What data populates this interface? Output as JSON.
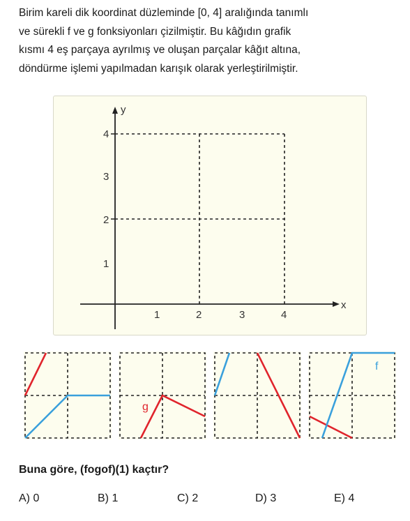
{
  "intro": {
    "lines": [
      "Birim kareli dik koordinat düzleminde [0, 4] aralığında tanımlı",
      "ve sürekli f ve g fonksiyonları çizilmiştir. Bu kâğıdın grafik",
      "kısmı 4 eş parçaya ayrılmış ve oluşan parçalar kâğıt altına,",
      "döndürme işlemi yapılmadan karışık olarak yerleştirilmiştir."
    ]
  },
  "graph": {
    "y_axis_label": "y",
    "x_axis_label": "x",
    "x_ticks": [
      "1",
      "2",
      "3",
      "4"
    ],
    "y_ticks": [
      "1",
      "2",
      "3",
      "4"
    ]
  },
  "pieces": {
    "piece3_label": "g",
    "piece4_label": "f"
  },
  "colors": {
    "f_line": "#3aa0dc",
    "g_line": "#e0242c",
    "paper": "#fdfdee"
  },
  "question": "Buna göre, (fogof)(1) kaçtır?",
  "options": [
    {
      "letter": "A)",
      "value": "0"
    },
    {
      "letter": "B)",
      "value": "1"
    },
    {
      "letter": "C)",
      "value": "2"
    },
    {
      "letter": "D)",
      "value": "3"
    },
    {
      "letter": "E)",
      "value": "4"
    }
  ]
}
